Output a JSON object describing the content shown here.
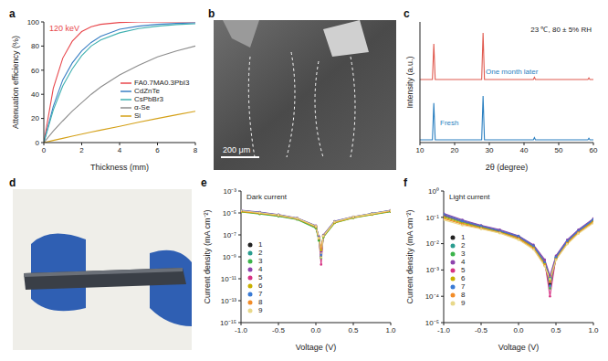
{
  "chart_data": [
    {
      "panel": "a",
      "type": "line",
      "x_label": "Thickness (mm)",
      "y_label": "Attenuation efficiency (%)",
      "annotation": "120 keV",
      "xlim": [
        0,
        8
      ],
      "xticks": [
        0,
        2,
        4,
        6,
        8
      ],
      "ylim": [
        0,
        100
      ],
      "yticks": [
        0,
        20,
        40,
        60,
        80,
        100
      ],
      "legend": "lower right",
      "x": [
        0,
        0.5,
        1,
        1.5,
        2,
        2.5,
        3,
        4,
        5,
        6,
        7,
        8
      ],
      "series": [
        {
          "name": "FA0.7MA0.3PbI3",
          "color": "#e8474c",
          "values": [
            0,
            45,
            70,
            84,
            92,
            96,
            98,
            99.5,
            100,
            100,
            100,
            100
          ]
        },
        {
          "name": "CdZnTe",
          "color": "#3a7fc4",
          "values": [
            0,
            30,
            52,
            66,
            76,
            83,
            88,
            94,
            96.5,
            98,
            98.8,
            99.2
          ]
        },
        {
          "name": "CsPbBr3",
          "color": "#3fb0b0",
          "values": [
            0,
            27,
            47,
            61,
            72,
            80,
            85,
            91,
            94.5,
            96.5,
            97.8,
            98.5
          ]
        },
        {
          "name": "α-Se",
          "color": "#8c8c8c",
          "values": [
            0,
            9.5,
            18,
            26,
            33,
            40,
            46,
            56,
            64,
            71,
            76,
            80
          ]
        },
        {
          "name": "Si",
          "color": "#d4a017",
          "values": [
            0,
            1.8,
            3.5,
            5.3,
            7,
            8.7,
            10.3,
            13.5,
            16.8,
            20,
            23,
            26
          ]
        }
      ]
    },
    {
      "panel": "c",
      "type": "line",
      "x_label": "2θ (degree)",
      "y_label": "Intensity (a.u.)",
      "annotation": "23 ℃, 80 ± 5% RH",
      "xlim": [
        10,
        60
      ],
      "xticks": [
        10,
        20,
        30,
        40,
        50,
        60
      ],
      "ylim": [
        0,
        2.2
      ],
      "tick_labels": "x",
      "x": [
        10,
        13.6,
        14.0,
        14.4,
        20,
        27.8,
        28.2,
        28.6,
        40,
        42.7,
        43.0,
        43.3,
        50,
        58.4,
        58.7,
        59.0,
        60
      ],
      "series": [
        {
          "name": "One month later",
          "color": "#e05a4f",
          "values": [
            1.15,
            1.15,
            1.8,
            1.15,
            1.15,
            1.15,
            2.0,
            1.15,
            1.15,
            1.15,
            1.19,
            1.15,
            1.15,
            1.15,
            1.18,
            1.15,
            1.15
          ]
        },
        {
          "name": "Fresh",
          "color": "#2a7fc0",
          "values": [
            0.05,
            0.05,
            0.72,
            0.05,
            0.05,
            0.05,
            0.85,
            0.05,
            0.05,
            0.05,
            0.09,
            0.05,
            0.05,
            0.05,
            0.08,
            0.05,
            0.05
          ]
        }
      ]
    },
    {
      "panel": "e",
      "type": "line",
      "title": "Dark current",
      "x_label": "Voltage (V)",
      "y_label": "Current density (mA cm⁻²)",
      "log": "y",
      "marker": "o",
      "legend": "left",
      "xlim": [
        -1,
        1
      ],
      "xticks": [
        {
          "value": -1,
          "label": "-1.0"
        },
        {
          "value": -0.5,
          "label": "-0.5"
        },
        {
          "value": 0,
          "label": "0.0"
        },
        {
          "value": 0.5,
          "label": "0.5"
        },
        {
          "value": 1,
          "label": "1.0"
        }
      ],
      "ylim": [
        1e-15,
        0.001
      ],
      "yticks": [
        {
          "value": 1e-15,
          "label": "10⁻¹⁵"
        },
        {
          "value": 1e-13,
          "label": "10⁻¹³"
        },
        {
          "value": 1e-11,
          "label": "10⁻¹¹"
        },
        {
          "value": 1e-09,
          "label": "10⁻⁹"
        },
        {
          "value": 1e-07,
          "label": "10⁻⁷"
        },
        {
          "value": 1e-05,
          "label": "10⁻⁵"
        },
        {
          "value": 0.001,
          "label": "10⁻³"
        }
      ],
      "x": [
        -1,
        -0.75,
        -0.5,
        -0.25,
        0,
        0.04,
        0.07,
        0.1,
        0.25,
        0.5,
        0.75,
        1
      ],
      "series": [
        {
          "name": "1",
          "color": "#222222",
          "values": [
            1.4e-05,
            9e-06,
            5.5e-06,
            2.8e-06,
            5e-07,
            4e-08,
            1e-09,
            7e-08,
            1.4e-06,
            3.8e-06,
            7.5e-06,
            1.4e-05
          ]
        },
        {
          "name": "2",
          "color": "#2a9d8f",
          "values": [
            1.6e-05,
            1.1e-05,
            6.5e-06,
            3.2e-06,
            6e-07,
            6e-08,
            5e-09,
            9e-08,
            1.6e-06,
            4.2e-06,
            8.5e-06,
            1.6e-05
          ]
        },
        {
          "name": "3",
          "color": "#3cb44b",
          "values": [
            1.2e-05,
            8e-06,
            5e-06,
            2.5e-06,
            4e-07,
            3e-08,
            8e-10,
            6e-08,
            1.2e-06,
            3.5e-06,
            7e-06,
            1.3e-05
          ]
        },
        {
          "name": "4",
          "color": "#8e44ad",
          "values": [
            1.8e-05,
            1.2e-05,
            7e-06,
            3.5e-06,
            7e-07,
            7e-08,
            3e-09,
            1e-07,
            1.8e-06,
            4.5e-06,
            9e-06,
            1.8e-05
          ]
        },
        {
          "name": "5",
          "color": "#d63384",
          "values": [
            1.5e-05,
            1e-05,
            6e-06,
            3e-06,
            5.5e-07,
            5e-08,
            2e-10,
            8e-08,
            1.5e-06,
            4e-06,
            8e-06,
            1.5e-05
          ]
        },
        {
          "name": "6",
          "color": "#c9b000",
          "values": [
            1.3e-05,
            9e-06,
            5.8e-06,
            2.9e-06,
            5e-07,
            4.5e-08,
            4e-09,
            7e-08,
            1.3e-06,
            3.6e-06,
            7.2e-06,
            1.4e-05
          ]
        },
        {
          "name": "7",
          "color": "#3a7bd5",
          "values": [
            1.7e-05,
            1.1e-05,
            6.8e-06,
            3.3e-06,
            6.5e-07,
            6e-08,
            1.5e-09,
            9e-08,
            1.7e-06,
            4.4e-06,
            8.8e-06,
            1.7e-05
          ]
        },
        {
          "name": "8",
          "color": "#f28c28",
          "values": [
            1.4e-05,
            9.5e-06,
            6.2e-06,
            3.1e-06,
            6e-07,
            5.5e-08,
            6e-09,
            8.5e-08,
            1.5e-06,
            4.1e-06,
            8.2e-06,
            1.5e-05
          ]
        },
        {
          "name": "9",
          "color": "#e8d88a",
          "values": [
            1.6e-05,
            1.05e-05,
            6.4e-06,
            3.2e-06,
            6.2e-07,
            5e-08,
            9e-10,
            8e-08,
            1.55e-06,
            4.3e-06,
            8.4e-06,
            1.6e-05
          ]
        }
      ]
    },
    {
      "panel": "f",
      "type": "line",
      "title": "Light current",
      "x_label": "Voltage (V)",
      "y_label": "Current density (mA cm⁻²)",
      "log": "y",
      "marker": "o",
      "legend": "left",
      "xlim": [
        -1,
        1
      ],
      "xticks": [
        {
          "value": -1,
          "label": "-1.0"
        },
        {
          "value": -0.5,
          "label": "-0.5"
        },
        {
          "value": 0,
          "label": "0.0"
        },
        {
          "value": 0.5,
          "label": "0.5"
        },
        {
          "value": 1,
          "label": "1.0"
        }
      ],
      "ylim": [
        1e-05,
        1
      ],
      "yticks": [
        {
          "value": 1e-05,
          "label": "10⁻⁵"
        },
        {
          "value": 0.0001,
          "label": "10⁻⁴"
        },
        {
          "value": 0.001,
          "label": "10⁻³"
        },
        {
          "value": 0.01,
          "label": "10⁻²"
        },
        {
          "value": 0.1,
          "label": "10⁻¹"
        },
        {
          "value": 1,
          "label": "10⁰"
        }
      ],
      "x": [
        -1,
        -0.75,
        -0.5,
        -0.25,
        0,
        0.2,
        0.35,
        0.42,
        0.5,
        0.65,
        0.8,
        1
      ],
      "series": [
        {
          "name": "1",
          "color": "#222222",
          "values": [
            0.12,
            0.07,
            0.045,
            0.03,
            0.018,
            0.008,
            0.002,
            0.0003,
            0.003,
            0.012,
            0.03,
            0.08
          ]
        },
        {
          "name": "2",
          "color": "#2a9d8f",
          "values": [
            0.13,
            0.075,
            0.048,
            0.032,
            0.019,
            0.0085,
            0.0022,
            0.0005,
            0.0032,
            0.013,
            0.032,
            0.085
          ]
        },
        {
          "name": "3",
          "color": "#3cb44b",
          "values": [
            0.11,
            0.065,
            0.042,
            0.028,
            0.017,
            0.0075,
            0.0018,
            0.0002,
            0.0028,
            0.011,
            0.028,
            0.075
          ]
        },
        {
          "name": "4",
          "color": "#8e44ad",
          "values": [
            0.14,
            0.08,
            0.05,
            0.034,
            0.02,
            0.009,
            0.0025,
            0.0006,
            0.0035,
            0.014,
            0.034,
            0.09
          ]
        },
        {
          "name": "5",
          "color": "#d63384",
          "values": [
            0.12,
            0.07,
            0.046,
            0.031,
            0.018,
            0.008,
            0.0021,
            0.0001,
            0.003,
            0.012,
            0.03,
            0.08
          ]
        },
        {
          "name": "6",
          "color": "#c9b000",
          "values": [
            0.1,
            0.06,
            0.04,
            0.027,
            0.016,
            0.007,
            0.0017,
            0.0004,
            0.0027,
            0.011,
            0.027,
            0.07
          ]
        },
        {
          "name": "7",
          "color": "#3a7bd5",
          "values": [
            0.13,
            0.072,
            0.047,
            0.031,
            0.019,
            0.0082,
            0.002,
            0.00025,
            0.0031,
            0.0125,
            0.031,
            0.082
          ]
        },
        {
          "name": "8",
          "color": "#f28c28",
          "values": [
            0.09,
            0.055,
            0.038,
            0.026,
            0.015,
            0.0065,
            0.0015,
            0.00035,
            0.0025,
            0.01,
            0.026,
            0.065
          ]
        },
        {
          "name": "9",
          "color": "#e8d88a",
          "values": [
            0.08,
            0.05,
            0.036,
            0.025,
            0.014,
            0.006,
            0.0014,
            0.00045,
            0.0024,
            0.0095,
            0.024,
            0.06
          ]
        }
      ]
    }
  ],
  "images": [
    {
      "panel": "b",
      "scale_bar": "200 μm"
    },
    {
      "panel": "d"
    }
  ]
}
